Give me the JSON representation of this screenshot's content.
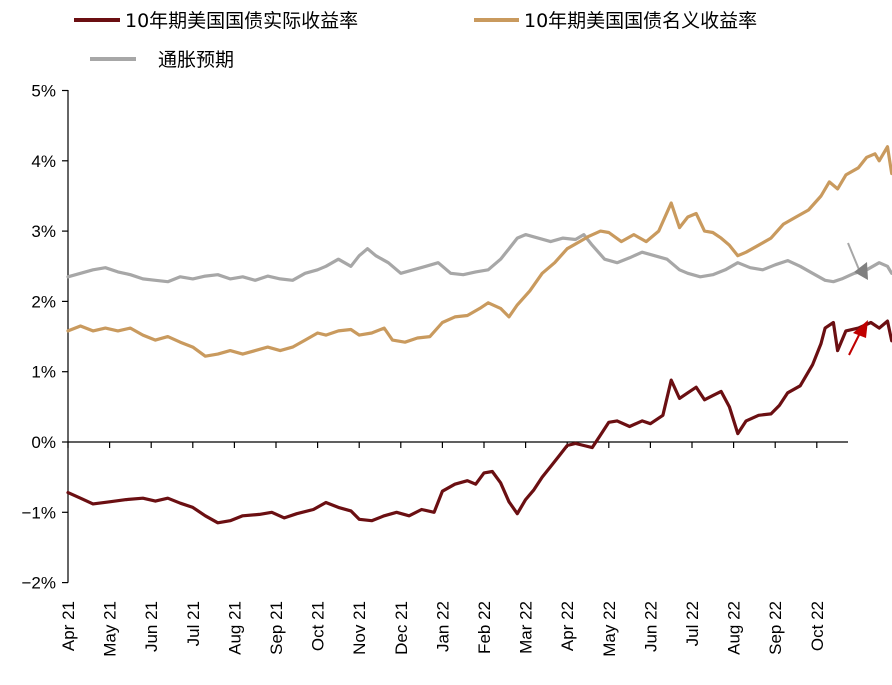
{
  "chart_data": {
    "type": "line",
    "title": "",
    "xlabel": "",
    "ylabel": "",
    "ylim": [
      -2,
      5
    ],
    "y_ticks": [
      "5%",
      "4%",
      "3%",
      "2%",
      "1%",
      "0%",
      "−1%",
      "−2%"
    ],
    "x_ticks": [
      "Apr 21",
      "May 21",
      "Jun 21",
      "Jul 21",
      "Aug 21",
      "Sep 21",
      "Oct 21",
      "Nov 21",
      "Dec 21",
      "Jan 22",
      "Feb 22",
      "Mar 22",
      "Apr 22",
      "May 22",
      "Jun 22",
      "Jul 22",
      "Aug 22",
      "Sep 22",
      "Oct 22"
    ],
    "x_unit": "months since Apr 2021",
    "grid": false,
    "legend_position": "top",
    "series": [
      {
        "name": "10年期美国国债实际收益率",
        "color": "#6b0f12",
        "points": [
          [
            0,
            -0.72
          ],
          [
            0.3,
            -0.8
          ],
          [
            0.6,
            -0.88
          ],
          [
            1.0,
            -0.85
          ],
          [
            1.4,
            -0.82
          ],
          [
            1.8,
            -0.8
          ],
          [
            2.1,
            -0.84
          ],
          [
            2.4,
            -0.8
          ],
          [
            2.7,
            -0.87
          ],
          [
            3.0,
            -0.93
          ],
          [
            3.3,
            -1.05
          ],
          [
            3.6,
            -1.15
          ],
          [
            3.9,
            -1.12
          ],
          [
            4.2,
            -1.05
          ],
          [
            4.6,
            -1.03
          ],
          [
            4.9,
            -1.0
          ],
          [
            5.2,
            -1.08
          ],
          [
            5.5,
            -1.02
          ],
          [
            5.9,
            -0.96
          ],
          [
            6.2,
            -0.86
          ],
          [
            6.5,
            -0.93
          ],
          [
            6.8,
            -0.98
          ],
          [
            7.0,
            -1.1
          ],
          [
            7.3,
            -1.12
          ],
          [
            7.6,
            -1.05
          ],
          [
            7.9,
            -1.0
          ],
          [
            8.2,
            -1.05
          ],
          [
            8.5,
            -0.96
          ],
          [
            8.8,
            -1.0
          ],
          [
            9.0,
            -0.7
          ],
          [
            9.3,
            -0.6
          ],
          [
            9.6,
            -0.55
          ],
          [
            9.8,
            -0.6
          ],
          [
            10.0,
            -0.44
          ],
          [
            10.2,
            -0.42
          ],
          [
            10.4,
            -0.58
          ],
          [
            10.6,
            -0.85
          ],
          [
            10.8,
            -1.02
          ],
          [
            11.0,
            -0.82
          ],
          [
            11.2,
            -0.68
          ],
          [
            11.4,
            -0.5
          ],
          [
            11.6,
            -0.35
          ],
          [
            11.8,
            -0.2
          ],
          [
            12.0,
            -0.05
          ],
          [
            12.2,
            -0.02
          ],
          [
            12.4,
            -0.05
          ],
          [
            12.6,
            -0.08
          ],
          [
            12.8,
            0.1
          ],
          [
            13.0,
            0.28
          ],
          [
            13.2,
            0.3
          ],
          [
            13.5,
            0.22
          ],
          [
            13.8,
            0.3
          ],
          [
            14.0,
            0.26
          ],
          [
            14.3,
            0.38
          ],
          [
            14.5,
            0.88
          ],
          [
            14.7,
            0.62
          ],
          [
            14.9,
            0.7
          ],
          [
            15.1,
            0.78
          ],
          [
            15.3,
            0.6
          ],
          [
            15.5,
            0.66
          ],
          [
            15.7,
            0.72
          ],
          [
            15.9,
            0.5
          ],
          [
            16.1,
            0.12
          ],
          [
            16.3,
            0.3
          ],
          [
            16.6,
            0.38
          ],
          [
            16.9,
            0.4
          ],
          [
            17.1,
            0.52
          ],
          [
            17.3,
            0.7
          ],
          [
            17.6,
            0.8
          ],
          [
            17.9,
            1.1
          ],
          [
            18.1,
            1.4
          ],
          [
            18.2,
            1.62
          ],
          [
            18.4,
            1.7
          ],
          [
            18.5,
            1.3
          ],
          [
            18.7,
            1.58
          ],
          [
            19.0,
            1.62
          ],
          [
            19.3,
            1.7
          ],
          [
            19.5,
            1.62
          ],
          [
            19.7,
            1.72
          ],
          [
            19.8,
            1.44
          ]
        ]
      },
      {
        "name": "10年期美国国债名义收益率",
        "color": "#c99a5e",
        "points": [
          [
            0,
            1.58
          ],
          [
            0.3,
            1.65
          ],
          [
            0.6,
            1.58
          ],
          [
            0.9,
            1.62
          ],
          [
            1.2,
            1.58
          ],
          [
            1.5,
            1.62
          ],
          [
            1.8,
            1.52
          ],
          [
            2.1,
            1.45
          ],
          [
            2.4,
            1.5
          ],
          [
            2.7,
            1.42
          ],
          [
            3.0,
            1.35
          ],
          [
            3.3,
            1.22
          ],
          [
            3.6,
            1.25
          ],
          [
            3.9,
            1.3
          ],
          [
            4.2,
            1.25
          ],
          [
            4.5,
            1.3
          ],
          [
            4.8,
            1.35
          ],
          [
            5.1,
            1.3
          ],
          [
            5.4,
            1.35
          ],
          [
            5.7,
            1.45
          ],
          [
            6.0,
            1.55
          ],
          [
            6.2,
            1.52
          ],
          [
            6.5,
            1.58
          ],
          [
            6.8,
            1.6
          ],
          [
            7.0,
            1.52
          ],
          [
            7.3,
            1.55
          ],
          [
            7.6,
            1.62
          ],
          [
            7.8,
            1.45
          ],
          [
            8.1,
            1.42
          ],
          [
            8.4,
            1.48
          ],
          [
            8.7,
            1.5
          ],
          [
            9.0,
            1.7
          ],
          [
            9.3,
            1.78
          ],
          [
            9.6,
            1.8
          ],
          [
            9.9,
            1.9
          ],
          [
            10.1,
            1.98
          ],
          [
            10.4,
            1.9
          ],
          [
            10.6,
            1.78
          ],
          [
            10.8,
            1.95
          ],
          [
            11.1,
            2.15
          ],
          [
            11.4,
            2.4
          ],
          [
            11.7,
            2.55
          ],
          [
            12.0,
            2.75
          ],
          [
            12.3,
            2.85
          ],
          [
            12.5,
            2.92
          ],
          [
            12.8,
            3.0
          ],
          [
            13.0,
            2.98
          ],
          [
            13.3,
            2.85
          ],
          [
            13.6,
            2.95
          ],
          [
            13.9,
            2.85
          ],
          [
            14.2,
            3.0
          ],
          [
            14.5,
            3.4
          ],
          [
            14.7,
            3.05
          ],
          [
            14.9,
            3.2
          ],
          [
            15.1,
            3.25
          ],
          [
            15.3,
            3.0
          ],
          [
            15.5,
            2.98
          ],
          [
            15.7,
            2.9
          ],
          [
            15.9,
            2.8
          ],
          [
            16.1,
            2.65
          ],
          [
            16.3,
            2.7
          ],
          [
            16.6,
            2.8
          ],
          [
            16.9,
            2.9
          ],
          [
            17.2,
            3.1
          ],
          [
            17.5,
            3.2
          ],
          [
            17.8,
            3.3
          ],
          [
            18.1,
            3.5
          ],
          [
            18.3,
            3.7
          ],
          [
            18.5,
            3.6
          ],
          [
            18.7,
            3.8
          ],
          [
            19.0,
            3.9
          ],
          [
            19.2,
            4.05
          ],
          [
            19.4,
            4.1
          ],
          [
            19.5,
            4.0
          ],
          [
            19.7,
            4.2
          ],
          [
            19.8,
            3.82
          ]
        ]
      },
      {
        "name": "通胀预期",
        "color": "#a7a7a7",
        "points": [
          [
            0,
            2.35
          ],
          [
            0.3,
            2.4
          ],
          [
            0.6,
            2.45
          ],
          [
            0.9,
            2.48
          ],
          [
            1.2,
            2.42
          ],
          [
            1.5,
            2.38
          ],
          [
            1.8,
            2.32
          ],
          [
            2.1,
            2.3
          ],
          [
            2.4,
            2.28
          ],
          [
            2.7,
            2.35
          ],
          [
            3.0,
            2.32
          ],
          [
            3.3,
            2.36
          ],
          [
            3.6,
            2.38
          ],
          [
            3.9,
            2.32
          ],
          [
            4.2,
            2.35
          ],
          [
            4.5,
            2.3
          ],
          [
            4.8,
            2.36
          ],
          [
            5.1,
            2.32
          ],
          [
            5.4,
            2.3
          ],
          [
            5.7,
            2.4
          ],
          [
            6.0,
            2.45
          ],
          [
            6.2,
            2.5
          ],
          [
            6.5,
            2.6
          ],
          [
            6.8,
            2.5
          ],
          [
            7.0,
            2.65
          ],
          [
            7.2,
            2.75
          ],
          [
            7.4,
            2.65
          ],
          [
            7.7,
            2.55
          ],
          [
            8.0,
            2.4
          ],
          [
            8.3,
            2.45
          ],
          [
            8.6,
            2.5
          ],
          [
            8.9,
            2.55
          ],
          [
            9.2,
            2.4
          ],
          [
            9.5,
            2.38
          ],
          [
            9.8,
            2.42
          ],
          [
            10.1,
            2.45
          ],
          [
            10.4,
            2.6
          ],
          [
            10.6,
            2.75
          ],
          [
            10.8,
            2.9
          ],
          [
            11.0,
            2.95
          ],
          [
            11.3,
            2.9
          ],
          [
            11.6,
            2.85
          ],
          [
            11.9,
            2.9
          ],
          [
            12.2,
            2.88
          ],
          [
            12.4,
            2.95
          ],
          [
            12.6,
            2.8
          ],
          [
            12.9,
            2.6
          ],
          [
            13.2,
            2.55
          ],
          [
            13.5,
            2.62
          ],
          [
            13.8,
            2.7
          ],
          [
            14.1,
            2.65
          ],
          [
            14.4,
            2.6
          ],
          [
            14.7,
            2.45
          ],
          [
            14.9,
            2.4
          ],
          [
            15.2,
            2.35
          ],
          [
            15.5,
            2.38
          ],
          [
            15.8,
            2.45
          ],
          [
            16.1,
            2.55
          ],
          [
            16.4,
            2.48
          ],
          [
            16.7,
            2.45
          ],
          [
            17.0,
            2.52
          ],
          [
            17.3,
            2.58
          ],
          [
            17.6,
            2.5
          ],
          [
            17.9,
            2.4
          ],
          [
            18.2,
            2.3
          ],
          [
            18.4,
            2.28
          ],
          [
            18.6,
            2.32
          ],
          [
            18.9,
            2.4
          ],
          [
            19.2,
            2.45
          ],
          [
            19.5,
            2.55
          ],
          [
            19.7,
            2.5
          ],
          [
            19.8,
            2.4
          ]
        ]
      }
    ],
    "annotations": [
      {
        "name": "gray-down-arrow",
        "color": "#a7a7a7",
        "direction": "down"
      },
      {
        "name": "red-up-arrow",
        "color": "#c00000",
        "direction": "up"
      }
    ]
  }
}
